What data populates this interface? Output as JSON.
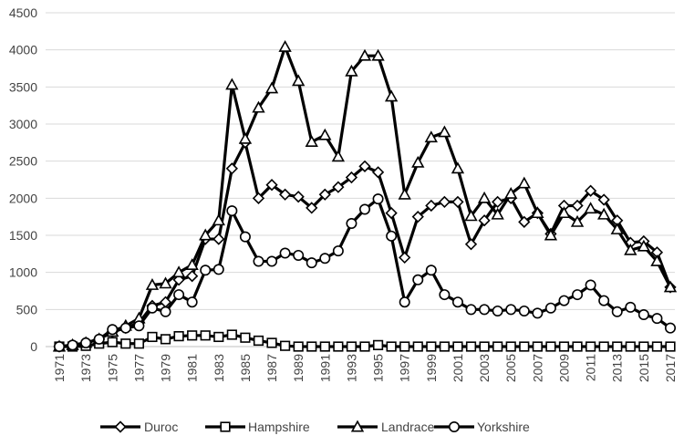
{
  "chart_data": {
    "type": "line",
    "title": "",
    "xlabel": "",
    "ylabel": "",
    "x": [
      1971,
      1972,
      1973,
      1974,
      1975,
      1976,
      1977,
      1978,
      1979,
      1980,
      1981,
      1982,
      1983,
      1984,
      1985,
      1986,
      1987,
      1988,
      1989,
      1990,
      1991,
      1992,
      1993,
      1994,
      1995,
      1996,
      1997,
      1998,
      1999,
      2000,
      2001,
      2002,
      2003,
      2004,
      2005,
      2006,
      2007,
      2008,
      2009,
      2010,
      2011,
      2012,
      2013,
      2014,
      2015,
      2016,
      2017
    ],
    "x_tick_labels": [
      "1971",
      "1973",
      "1975",
      "1977",
      "1979",
      "1981",
      "1983",
      "1985",
      "1987",
      "1989",
      "1991",
      "1993",
      "1995",
      "1997",
      "1999",
      "2001",
      "2003",
      "2005",
      "2007",
      "2009",
      "2011",
      "2013",
      "2015",
      "2017"
    ],
    "ylim": [
      0,
      4500
    ],
    "y_ticks": [
      0,
      500,
      1000,
      1500,
      2000,
      2500,
      3000,
      3500,
      4000,
      4500
    ],
    "grid": true,
    "legend_position": "bottom",
    "series": [
      {
        "name": "Duroc",
        "marker": "diamond",
        "values": [
          0,
          20,
          50,
          100,
          200,
          250,
          320,
          550,
          600,
          900,
          950,
          1450,
          1450,
          2400,
          2750,
          2000,
          2180,
          2050,
          2020,
          1870,
          2050,
          2150,
          2280,
          2430,
          2350,
          1800,
          1200,
          1750,
          1900,
          1950,
          1950,
          1380,
          1700,
          1950,
          2000,
          1680,
          1800,
          1520,
          1900,
          1900,
          2100,
          1980,
          1700,
          1400,
          1420,
          1270,
          800
        ]
      },
      {
        "name": "Hampshire",
        "marker": "square",
        "values": [
          0,
          0,
          10,
          40,
          60,
          40,
          40,
          130,
          100,
          140,
          150,
          150,
          130,
          160,
          120,
          80,
          50,
          10,
          0,
          0,
          0,
          0,
          0,
          0,
          20,
          0,
          0,
          0,
          0,
          0,
          0,
          0,
          0,
          0,
          0,
          0,
          0,
          0,
          0,
          0,
          0,
          0,
          0,
          0,
          0,
          0,
          0
        ]
      },
      {
        "name": "Landrace",
        "marker": "triangle",
        "values": [
          0,
          20,
          50,
          100,
          200,
          280,
          380,
          830,
          850,
          1000,
          1100,
          1500,
          1700,
          3530,
          2800,
          3220,
          3480,
          4040,
          3580,
          2760,
          2850,
          2560,
          3710,
          3920,
          3920,
          3370,
          2050,
          2480,
          2820,
          2890,
          2400,
          1760,
          2000,
          1780,
          2060,
          2200,
          1800,
          1500,
          1800,
          1680,
          1860,
          1780,
          1580,
          1300,
          1350,
          1150,
          800
        ]
      },
      {
        "name": "Yorkshire",
        "marker": "circle",
        "values": [
          0,
          20,
          50,
          100,
          230,
          250,
          280,
          520,
          470,
          700,
          600,
          1030,
          1040,
          1830,
          1480,
          1150,
          1150,
          1260,
          1230,
          1130,
          1190,
          1290,
          1660,
          1850,
          1990,
          1490,
          600,
          900,
          1030,
          700,
          600,
          500,
          500,
          480,
          500,
          480,
          450,
          520,
          620,
          700,
          830,
          620,
          470,
          530,
          430,
          380,
          250
        ]
      }
    ]
  }
}
